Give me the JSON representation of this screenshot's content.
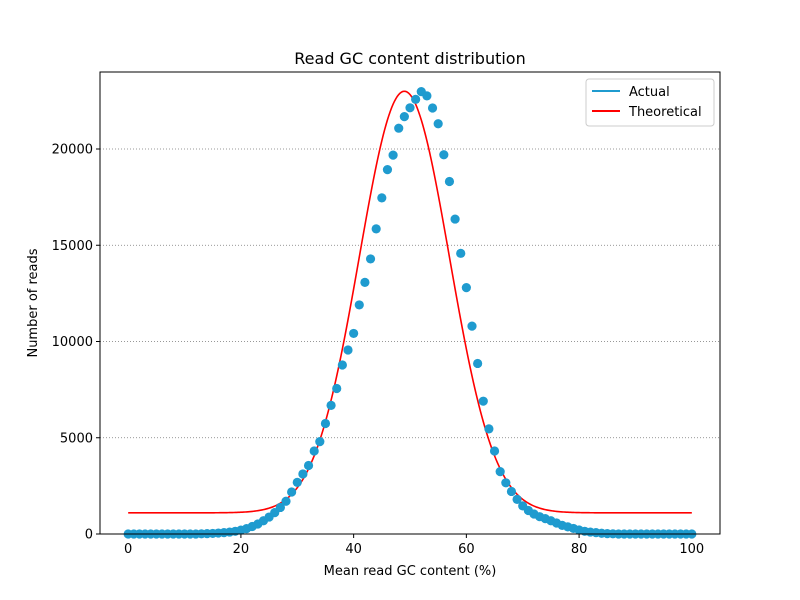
{
  "chart_data": {
    "type": "scatter",
    "title": "Read GC content distribution",
    "xlabel": "Mean read GC content (%)",
    "ylabel": "Number of reads",
    "xlim": [
      -5,
      105
    ],
    "ylim": [
      0,
      24000
    ],
    "xticks": [
      0,
      20,
      40,
      60,
      80,
      100
    ],
    "yticks": [
      0,
      5000,
      10000,
      15000,
      20000
    ],
    "grid": "horizontal dotted",
    "legend_position": "top-right",
    "series": [
      {
        "name": "Actual",
        "style": "points",
        "color": "#1f9bcf",
        "x": [
          0,
          1,
          2,
          3,
          4,
          5,
          6,
          7,
          8,
          9,
          10,
          11,
          12,
          13,
          14,
          15,
          16,
          17,
          18,
          19,
          20,
          21,
          22,
          23,
          24,
          25,
          26,
          27,
          28,
          29,
          30,
          31,
          32,
          33,
          34,
          35,
          36,
          37,
          38,
          39,
          40,
          41,
          42,
          43,
          44,
          45,
          46,
          47,
          48,
          49,
          50,
          51,
          52,
          53,
          54,
          55,
          56,
          57,
          58,
          59,
          60,
          61,
          62,
          63,
          64,
          65,
          66,
          67,
          68,
          69,
          70,
          71,
          72,
          73,
          74,
          75,
          76,
          77,
          78,
          79,
          80,
          81,
          82,
          83,
          84,
          85,
          86,
          87,
          88,
          89,
          90,
          91,
          92,
          93,
          94,
          95,
          96,
          97,
          98,
          99,
          100
        ],
        "y": [
          0,
          0,
          0,
          0,
          0,
          0,
          0,
          0,
          0,
          0,
          0,
          0,
          0,
          10,
          20,
          30,
          50,
          70,
          100,
          140,
          200,
          280,
          390,
          520,
          690,
          880,
          1110,
          1380,
          1700,
          2180,
          2680,
          3120,
          3560,
          4310,
          4800,
          5740,
          6680,
          7560,
          8780,
          9560,
          10420,
          11900,
          13070,
          14290,
          15850,
          17460,
          18930,
          19680,
          21080,
          21680,
          22140,
          22580,
          22980,
          22760,
          22130,
          21310,
          19700,
          18310,
          16360,
          14580,
          12800,
          10800,
          8860,
          6900,
          5460,
          4310,
          3240,
          2660,
          2210,
          1800,
          1460,
          1220,
          1040,
          900,
          800,
          690,
          570,
          450,
          370,
          290,
          210,
          140,
          100,
          70,
          40,
          20,
          10,
          0,
          0,
          0,
          0,
          0,
          0,
          0,
          0,
          0,
          0,
          0,
          0,
          0,
          0
        ]
      },
      {
        "name": "Theoretical",
        "style": "line",
        "color": "#ff0000",
        "mean": 49,
        "sd": 8,
        "amplitude": 21900,
        "baseline": 1100
      }
    ]
  }
}
